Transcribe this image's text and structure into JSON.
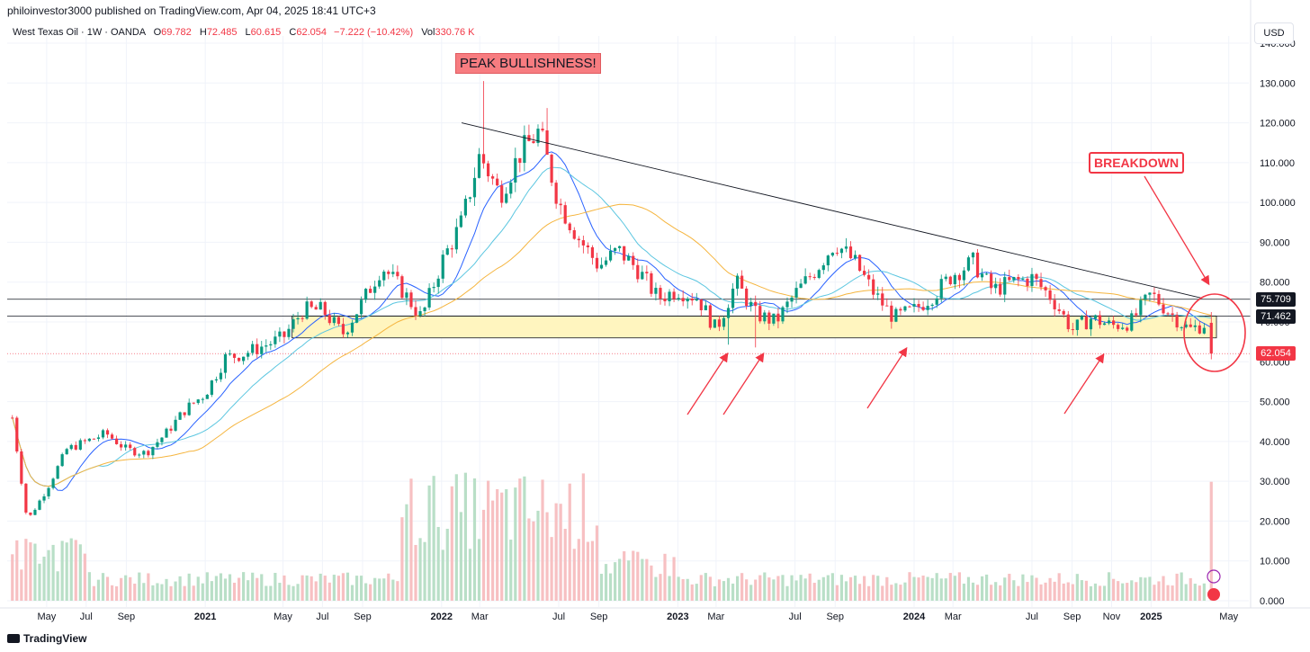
{
  "header": {
    "publisher": "philoinvestor3000 published on TradingView.com, Apr 04, 2025 18:41 UTC+3"
  },
  "legend": {
    "symbol": "West Texas Oil · 1W · OANDA",
    "o_label": "O",
    "o_value": "69.782",
    "h_label": "H",
    "h_value": "72.485",
    "l_label": "L",
    "l_value": "60.615",
    "c_label": "C",
    "c_value": "62.054",
    "change": "−7.222 (−10.42%)",
    "vol_label": "Vol",
    "vol_value": "330.76 K"
  },
  "currency_button": "USD",
  "footer_logo": "TradingView",
  "annotations": {
    "peak_label": "PEAK BULLISHNESS!",
    "breakdown_label": "BREAKDOWN"
  },
  "price_labels": [
    {
      "value": "75.709",
      "price": 75.709,
      "color": "#131722"
    },
    {
      "value": "71.462",
      "price": 71.462,
      "color": "#131722"
    },
    {
      "value": "62.054",
      "price": 62.054,
      "color": "#f23645"
    }
  ],
  "colors": {
    "up": "#089981",
    "down": "#f23645",
    "vol_up": "#b9dfc7",
    "vol_down": "#f7c0c2",
    "ma_fast": "#2962ff",
    "ma_mid": "#5bc6e0",
    "ma_slow": "#f5b53f",
    "support_zone": "#fff5bf",
    "trendline": "#131722",
    "arrow": "#f23645"
  },
  "chart_data": {
    "type": "candlestick",
    "yaxis_ticks": [
      "140.000",
      "130.000",
      "120.000",
      "110.000",
      "100.000",
      "90.000",
      "80.000",
      "70.000",
      "60.000",
      "50.000",
      "40.000",
      "30.000",
      "20.000",
      "10.000",
      "0.000"
    ],
    "ylim": [
      0,
      140
    ],
    "xaxis_ticks": [
      {
        "label": "May",
        "date": "2020-05"
      },
      {
        "label": "Jul",
        "date": "2020-07"
      },
      {
        "label": "Sep",
        "date": "2020-09"
      },
      {
        "label": "2021",
        "date": "2021-01"
      },
      {
        "label": "May",
        "date": "2021-05"
      },
      {
        "label": "Jul",
        "date": "2021-07"
      },
      {
        "label": "Sep",
        "date": "2021-09"
      },
      {
        "label": "2022",
        "date": "2022-01"
      },
      {
        "label": "Mar",
        "date": "2022-03"
      },
      {
        "label": "Jul",
        "date": "2022-07"
      },
      {
        "label": "Sep",
        "date": "2022-09"
      },
      {
        "label": "2023",
        "date": "2023-01"
      },
      {
        "label": "Mar",
        "date": "2023-03"
      },
      {
        "label": "Jul",
        "date": "2023-07"
      },
      {
        "label": "Sep",
        "date": "2023-09"
      },
      {
        "label": "2024",
        "date": "2024-01"
      },
      {
        "label": "Mar",
        "date": "2024-03"
      },
      {
        "label": "Jul",
        "date": "2024-07"
      },
      {
        "label": "Sep",
        "date": "2024-09"
      },
      {
        "label": "Nov",
        "date": "2024-11"
      },
      {
        "label": "2025",
        "date": "2025-01"
      },
      {
        "label": "May",
        "date": "2025-05"
      }
    ],
    "price_path": [
      [
        "2020-03",
        55
      ],
      [
        "2020-04",
        20
      ],
      [
        "2020-05",
        28
      ],
      [
        "2020-06",
        38
      ],
      [
        "2020-07",
        40
      ],
      [
        "2020-08",
        42
      ],
      [
        "2020-09",
        38
      ],
      [
        "2020-10",
        37
      ],
      [
        "2020-11",
        42
      ],
      [
        "2020-12",
        48
      ],
      [
        "2021-01",
        52
      ],
      [
        "2021-02",
        61
      ],
      [
        "2021-03",
        62
      ],
      [
        "2021-04",
        64
      ],
      [
        "2021-05",
        66
      ],
      [
        "2021-06",
        73
      ],
      [
        "2021-07",
        73
      ],
      [
        "2021-08",
        67
      ],
      [
        "2021-09",
        75
      ],
      [
        "2021-10",
        84
      ],
      [
        "2021-11",
        78
      ],
      [
        "2021-12",
        71
      ],
      [
        "2022-01",
        85
      ],
      [
        "2022-02",
        95
      ],
      [
        "2022-03",
        112
      ],
      [
        "2022-04",
        102
      ],
      [
        "2022-05",
        112
      ],
      [
        "2022-06",
        118
      ],
      [
        "2022-07",
        100
      ],
      [
        "2022-08",
        91
      ],
      [
        "2022-09",
        84
      ],
      [
        "2022-10",
        88
      ],
      [
        "2022-11",
        83
      ],
      [
        "2022-12",
        76
      ],
      [
        "2023-01",
        78
      ],
      [
        "2023-02",
        76
      ],
      [
        "2023-03",
        68
      ],
      [
        "2023-04",
        80
      ],
      [
        "2023-05",
        72
      ],
      [
        "2023-06",
        70
      ],
      [
        "2023-07",
        77
      ],
      [
        "2023-08",
        83
      ],
      [
        "2023-09",
        90
      ],
      [
        "2023-10",
        85
      ],
      [
        "2023-11",
        77
      ],
      [
        "2023-12",
        71
      ],
      [
        "2024-01",
        73
      ],
      [
        "2024-02",
        77
      ],
      [
        "2024-03",
        82
      ],
      [
        "2024-04",
        85
      ],
      [
        "2024-05",
        78
      ],
      [
        "2024-06",
        80
      ],
      [
        "2024-07",
        81
      ],
      [
        "2024-08",
        76
      ],
      [
        "2024-09",
        68
      ],
      [
        "2024-10",
        71
      ],
      [
        "2024-11",
        69
      ],
      [
        "2024-12",
        70
      ],
      [
        "2025-01",
        77
      ],
      [
        "2025-02",
        72
      ],
      [
        "2025-03",
        68
      ],
      [
        "2025-03-28",
        69.782
      ],
      [
        "2025-04-04",
        62.054
      ]
    ],
    "spikes": [
      {
        "date": "2022-03-07",
        "high": 130.5
      },
      {
        "date": "2022-06-13",
        "high": 123.7
      },
      {
        "date": "2023-03-17",
        "low": 64.3
      },
      {
        "date": "2023-05-04",
        "low": 63.6
      }
    ],
    "last_bar": {
      "open": 69.782,
      "high": 72.485,
      "low": 60.615,
      "close": 62.054,
      "volume": "330.76 K"
    },
    "support_zone": [
      66,
      71.5
    ],
    "horizontal_levels": [
      75.709,
      71.462
    ],
    "trendline": [
      [
        "2022-02",
        120
      ],
      [
        "2025-03-20",
        76
      ]
    ]
  }
}
